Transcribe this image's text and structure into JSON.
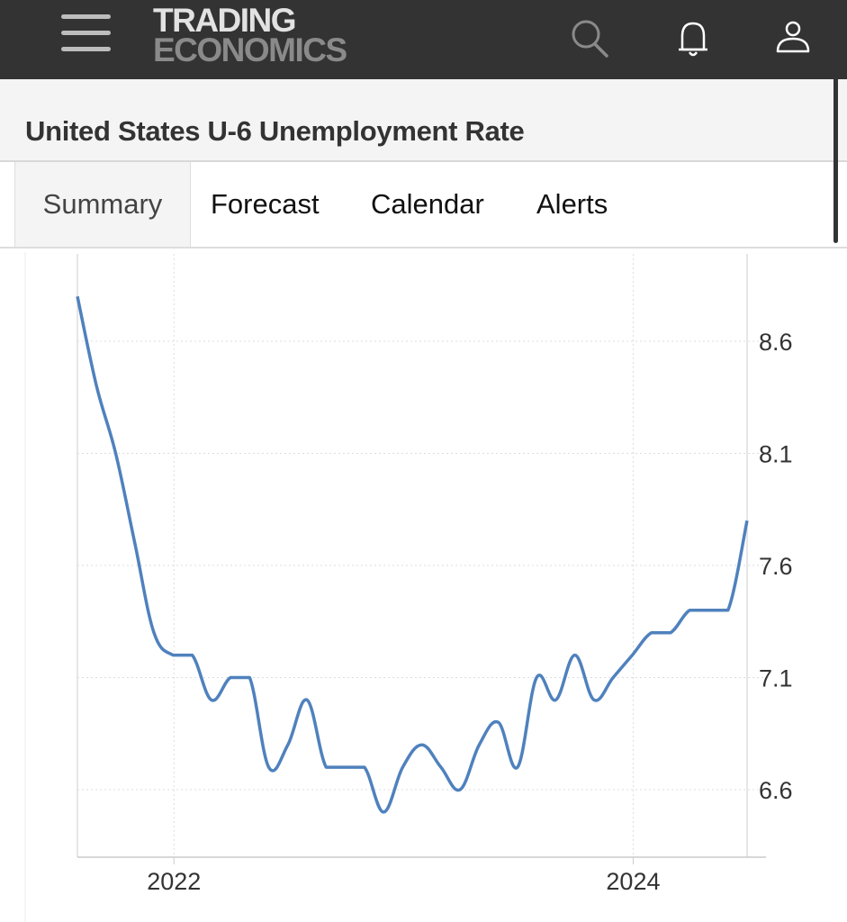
{
  "header": {
    "logo_line1": "TRADING",
    "logo_line2": "ECONOMICS",
    "icons": [
      "menu-icon",
      "search-icon",
      "bell-icon",
      "user-icon"
    ]
  },
  "page_title": "United States U-6 Unemployment Rate",
  "tabs": [
    {
      "label": "Summary",
      "active": true
    },
    {
      "label": "Forecast"
    },
    {
      "label": "Calendar"
    },
    {
      "label": "Alerts"
    }
  ],
  "colors": {
    "line": "#4f81bd",
    "topbar": "#333333"
  },
  "chart_data": {
    "type": "line",
    "title": "",
    "xlabel": "",
    "ylabel": "",
    "x": [
      "2021-08",
      "2021-09",
      "2021-10",
      "2021-11",
      "2021-12",
      "2022-01",
      "2022-02",
      "2022-03",
      "2022-04",
      "2022-05",
      "2022-06",
      "2022-07",
      "2022-08",
      "2022-09",
      "2022-10",
      "2022-11",
      "2022-12",
      "2023-01",
      "2023-02",
      "2023-03",
      "2023-04",
      "2023-05",
      "2023-06",
      "2023-07",
      "2023-08",
      "2023-09",
      "2023-10",
      "2023-11",
      "2023-12",
      "2024-01",
      "2024-02",
      "2024-03",
      "2024-04",
      "2024-05",
      "2024-06",
      "2024-07"
    ],
    "series": [
      {
        "name": "U-6 Unemployment Rate",
        "values": [
          8.8,
          8.4,
          8.1,
          7.7,
          7.3,
          7.2,
          7.2,
          7.0,
          7.1,
          7.1,
          6.7,
          6.8,
          7.0,
          6.7,
          6.7,
          6.7,
          6.5,
          6.7,
          6.8,
          6.7,
          6.6,
          6.8,
          6.9,
          6.7,
          7.1,
          7.0,
          7.2,
          7.0,
          7.1,
          7.2,
          7.3,
          7.3,
          7.4,
          7.4,
          7.4,
          7.8
        ]
      }
    ],
    "x_ticks": [
      {
        "label": "2022",
        "index": 5
      },
      {
        "label": "2024",
        "index": 29
      }
    ],
    "y_ticks": [
      "6.6",
      "7.1",
      "7.6",
      "8.1",
      "8.6"
    ],
    "ylim": [
      6.3,
      9.0
    ],
    "grid": true,
    "y_axis_side": "right"
  }
}
